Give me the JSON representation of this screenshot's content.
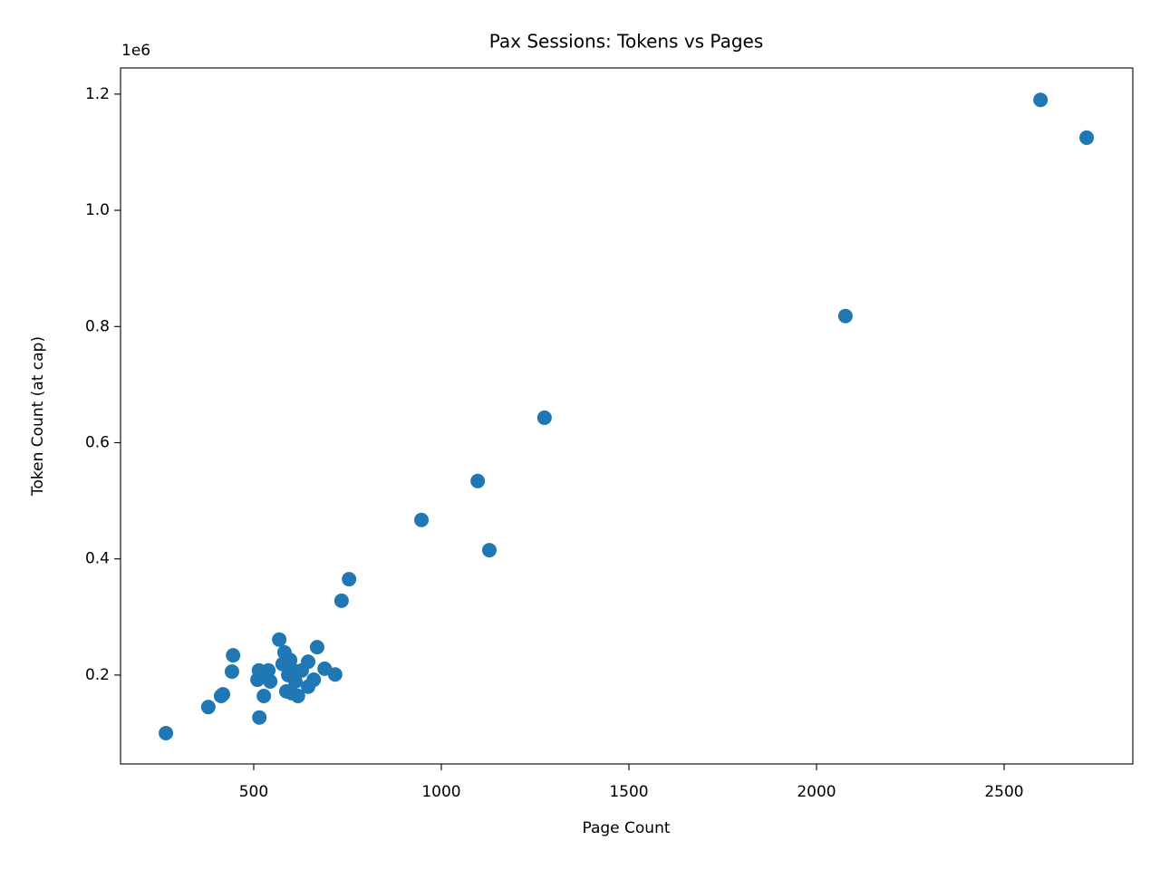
{
  "chart_data": {
    "type": "scatter",
    "title": "Pax Sessions: Tokens vs Pages",
    "x_label": "Page Count",
    "y_label": "Token Count (at cap)",
    "y_offset_text": "1e6",
    "color": "#1f77b4",
    "x": [
      266,
      379,
      413,
      418,
      442,
      445,
      515,
      510,
      514,
      527,
      529,
      544,
      568,
      577,
      582,
      587,
      592,
      597,
      601,
      606,
      618,
      628,
      645,
      645,
      660,
      669,
      689,
      717,
      734,
      754,
      947,
      1097,
      1128,
      1275,
      2077,
      2597,
      2720,
      539,
      611
    ],
    "y": [
      100000,
      145000,
      164000,
      167000,
      206000,
      234000,
      127000,
      192000,
      208000,
      164000,
      200000,
      189000,
      261000,
      219000,
      239000,
      172000,
      200000,
      226000,
      169000,
      208000,
      164000,
      208000,
      223000,
      180000,
      192000,
      248000,
      211000,
      201000,
      328000,
      365000,
      467000,
      534000,
      415000,
      643000,
      818000,
      1190000,
      1125000,
      208000,
      189000
    ],
    "xlim": [
      145,
      2843
    ],
    "ylim": [
      47000,
      1245000
    ],
    "xticks": [
      500,
      1000,
      1500,
      2000,
      2500
    ],
    "yticks": [
      {
        "value": 200000,
        "label": "0.2"
      },
      {
        "value": 400000,
        "label": "0.4"
      },
      {
        "value": 600000,
        "label": "0.6"
      },
      {
        "value": 800000,
        "label": "0.8"
      },
      {
        "value": 1000000,
        "label": "1.0"
      },
      {
        "value": 1200000,
        "label": "1.2"
      }
    ]
  }
}
